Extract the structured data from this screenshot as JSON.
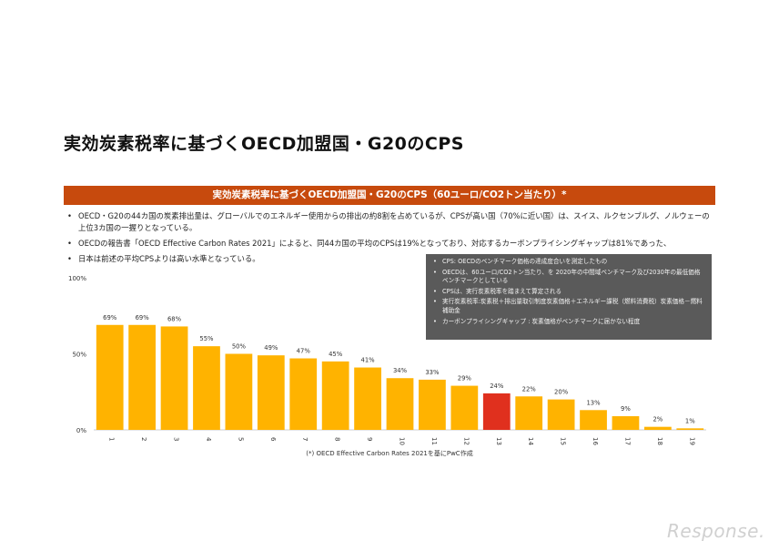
{
  "page_title": "実効炭素税率に基づくOECD加盟国・G20のCPS",
  "banner": "実効炭素税率に基づくOECD加盟国・G20のCPS（60ユーロ/CO2トン当たり）*",
  "bullets": [
    "OECD・G20の44カ国の炭素排出量は、グローバルでのエネルギー使用からの排出の約8割を占めているが、CPSが高い国（70%に近い国）は、スイス、ルクセンブルグ、ノルウェーの上位3カ国の一握りとなっている。",
    "OECDの報告書「OECD Effective Carbon Rates 2021」によると、同44カ国の平均のCPSは19%となっており、対応するカーボンプライシングギャップは81%であった、",
    "日本は前述の平均CPSよりは高い水準となっている。"
  ],
  "notes": [
    "CPS: OECDのベンチマーク価格の達成度合いを測定したもの",
    "OECDは、60ユーロ/CO2トン当たり、を 2020年の中間域ベンチマーク及び2030年の最低価格ベンチマークとしている",
    "CPSは、実行炭素税率を踏まえて算定される",
    "実行炭素税率:炭素税＋排出量取引制度炭素価格＋エネルギー課税（燃料消費税）炭素価格－燃料補助金",
    "カーボンプライシングギャップ : 炭素価格がベンチマークに届かない程度"
  ],
  "source": "(*) OECD Effective Carbon Rates 2021を基にPwC作成",
  "logo": "Response.",
  "chart_data": {
    "type": "bar",
    "categories": [
      "1",
      "2",
      "3",
      "4",
      "5",
      "6",
      "7",
      "8",
      "9",
      "10",
      "11",
      "12",
      "13",
      "14",
      "15",
      "16",
      "17",
      "18",
      "19"
    ],
    "values": [
      69,
      69,
      68,
      55,
      50,
      49,
      47,
      45,
      41,
      34,
      33,
      29,
      24,
      22,
      20,
      13,
      9,
      2,
      1
    ],
    "data_labels": [
      "69%",
      "69%",
      "68%",
      "55%",
      "50%",
      "49%",
      "47%",
      "45%",
      "41%",
      "34%",
      "33%",
      "29%",
      "24%",
      "22%",
      "20%",
      "13%",
      "9%",
      "2%",
      "1%"
    ],
    "yticks": [
      "0%",
      "50%",
      "100%"
    ],
    "ylim": [
      0,
      100
    ],
    "bar_color": "#FFB300",
    "highlight_index": 12,
    "highlight_color": "#E0301E",
    "grid": false
  }
}
